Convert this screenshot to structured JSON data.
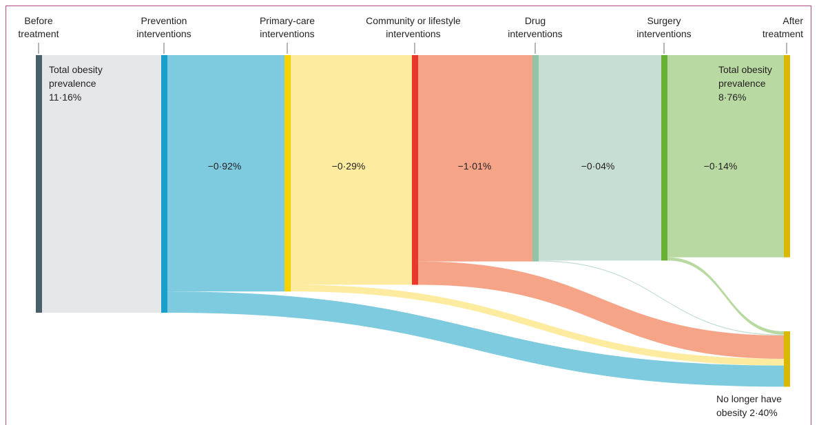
{
  "stages": [
    {
      "id": "before",
      "line1": "Before",
      "line2": "treatment",
      "color": "#4a6068"
    },
    {
      "id": "prevention",
      "line1": "Prevention",
      "line2": "interventions",
      "color": "#1a9fcb",
      "flow_color": "#7ecadf"
    },
    {
      "id": "primary-care",
      "line1": "Primary-care",
      "line2": "interventions",
      "color": "#f5d200",
      "flow_color": "#fdeca0"
    },
    {
      "id": "community",
      "line1": "Community or lifestyle",
      "line2": "interventions",
      "color": "#e8392c",
      "flow_color": "#f5a488"
    },
    {
      "id": "drug",
      "line1": "Drug",
      "line2": "interventions",
      "color": "#94c3a6",
      "flow_color": "#c6ded4"
    },
    {
      "id": "surgery",
      "line1": "Surgery",
      "line2": "interventions",
      "color": "#68b035",
      "flow_color": "#b8d9a2"
    },
    {
      "id": "after",
      "line1": "After",
      "line2": "treatment",
      "color": "#d9b800"
    }
  ],
  "before_label": {
    "line1": "Total obesity",
    "line2": "prevalence",
    "line3": "11·16%",
    "fill": "#e5e6e8"
  },
  "after_label": {
    "line1": "Total obesity",
    "line2": "prevalence",
    "line3": "8·76%"
  },
  "no_longer_label": {
    "line1": "No longer have",
    "line2": "obesity 2·40%"
  },
  "reductions": [
    "−0·92%",
    "−0·29%",
    "−1·01%",
    "−0·04%",
    "−0·14%"
  ],
  "chart_data": {
    "type": "sankey",
    "total_before": 11.16,
    "total_after": 8.76,
    "no_longer_obese": 2.4,
    "flows": [
      {
        "from": "Prevention interventions",
        "to": "No longer have obesity",
        "value": 0.92
      },
      {
        "from": "Primary-care interventions",
        "to": "No longer have obesity",
        "value": 0.29
      },
      {
        "from": "Community or lifestyle interventions",
        "to": "No longer have obesity",
        "value": 1.01
      },
      {
        "from": "Drug interventions",
        "to": "No longer have obesity",
        "value": 0.04
      },
      {
        "from": "Surgery interventions",
        "to": "No longer have obesity",
        "value": 0.14
      }
    ]
  }
}
